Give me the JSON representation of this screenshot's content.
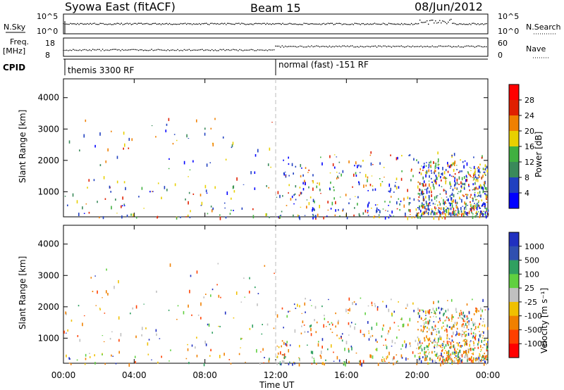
{
  "header": {
    "title": "Syowa East (fitACF)",
    "beam": "Beam 15",
    "date": "08/Jun/2012"
  },
  "top_panels": {
    "nsky_label": "N.Sky",
    "nsky_ticks": [
      "10^5",
      "10^0"
    ],
    "nsearch_label": "N.Search",
    "nsearch_ticks": [
      "10^5",
      "10^0"
    ],
    "freq_label": "Freq.",
    "freq_unit": "[MHz]",
    "freq_ticks": [
      "18",
      "8"
    ],
    "nave_label": "Nave",
    "nave_ticks": [
      "60",
      "0"
    ],
    "cpid_label": "CPID",
    "cpid_left": "themis 3300 RF",
    "cpid_right": "normal (fast) -151 RF"
  },
  "chart_data": [
    {
      "type": "heatmap",
      "title": "",
      "ylabel": "Slant Range [km]",
      "xlabel": "",
      "xlim": [
        0,
        24
      ],
      "ylim": [
        200,
        4600
      ],
      "yticks": [
        "1000",
        "2000",
        "3000",
        "4000"
      ],
      "colorbar": {
        "label": "Power [dB]",
        "ticks": [
          "4",
          "8",
          "12",
          "16",
          "20",
          "24",
          "28"
        ],
        "colors": [
          "#0000ff",
          "#2040c0",
          "#3a8a5a",
          "#40b040",
          "#e8d000",
          "#f08000",
          "#e02000",
          "#ff0000"
        ]
      },
      "echo_regions": [
        {
          "t_start": 0.0,
          "t_end": 11.9,
          "range_min": 200,
          "range_max": 3400,
          "density": "sparse"
        },
        {
          "t_start": 12.0,
          "t_end": 24.0,
          "range_min": 200,
          "range_max": 2300,
          "density": "moderate"
        },
        {
          "t_start": 20.0,
          "t_end": 24.0,
          "range_min": 300,
          "range_max": 2000,
          "density": "dense"
        }
      ]
    },
    {
      "type": "heatmap",
      "title": "",
      "ylabel": "Slant Range [km]",
      "xlabel": "Time UT",
      "xlim": [
        0,
        24
      ],
      "ylim": [
        200,
        4600
      ],
      "yticks": [
        "1000",
        "2000",
        "3000",
        "4000"
      ],
      "xticks": [
        "00:00",
        "04:00",
        "08:00",
        "12:00",
        "16:00",
        "20:00",
        "00:00"
      ],
      "colorbar": {
        "label": "Velocity [m s⁻¹]",
        "ticks": [
          "1000",
          "500",
          "100",
          "25",
          "-25",
          "-100",
          "-500",
          "-1000"
        ],
        "colors": [
          "#2030c0",
          "#3050b0",
          "#30a060",
          "#60d040",
          "#c0c0c0",
          "#f0c000",
          "#f08000",
          "#ff4000",
          "#ff0000"
        ]
      },
      "echo_regions": [
        {
          "t_start": 0.0,
          "t_end": 11.9,
          "range_min": 200,
          "range_max": 3400,
          "density": "sparse"
        },
        {
          "t_start": 12.0,
          "t_end": 24.0,
          "range_min": 200,
          "range_max": 2300,
          "density": "moderate"
        },
        {
          "t_start": 20.0,
          "t_end": 24.0,
          "range_min": 300,
          "range_max": 2000,
          "density": "dense"
        }
      ]
    }
  ],
  "colors": {
    "axis": "#000000",
    "dashed_marker": "#bbbbbb"
  }
}
